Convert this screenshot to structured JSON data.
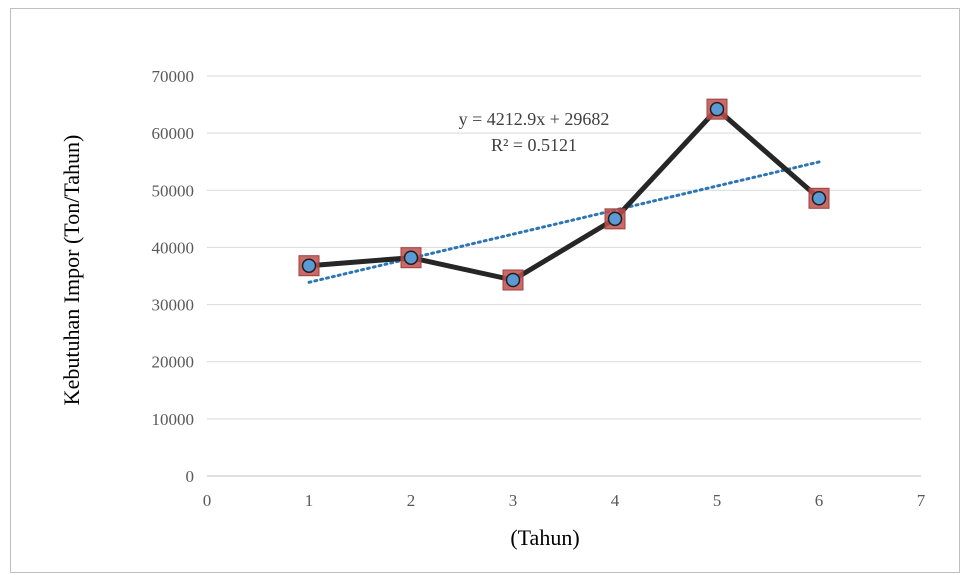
{
  "chart_data": {
    "type": "scatter",
    "title": "",
    "xlabel": "(Tahun)",
    "ylabel": "Kebutuhan Impor (Ton/Tahun)",
    "xlim": [
      0,
      7
    ],
    "ylim": [
      0,
      70000
    ],
    "x_ticks": [
      "0",
      "1",
      "2",
      "3",
      "4",
      "5",
      "6",
      "7"
    ],
    "y_ticks": [
      "0",
      "10000",
      "20000",
      "30000",
      "40000",
      "50000",
      "60000",
      "70000"
    ],
    "grid": "horizontal",
    "series": [
      {
        "x": [
          1,
          2,
          3,
          4,
          5,
          6
        ],
        "y": [
          36800,
          38200,
          34300,
          45000,
          64200,
          48600
        ],
        "color": "#262626",
        "marker_fill": "#5b9bd5",
        "marker_box": "#c0504d"
      }
    ],
    "trendline": {
      "type": "linear",
      "slope": 4212.9,
      "intercept": 29682,
      "color": "#2e75b6",
      "equation_text": "y = 4212.9x + 29682",
      "r2_text": "R² = 0.5121"
    }
  }
}
